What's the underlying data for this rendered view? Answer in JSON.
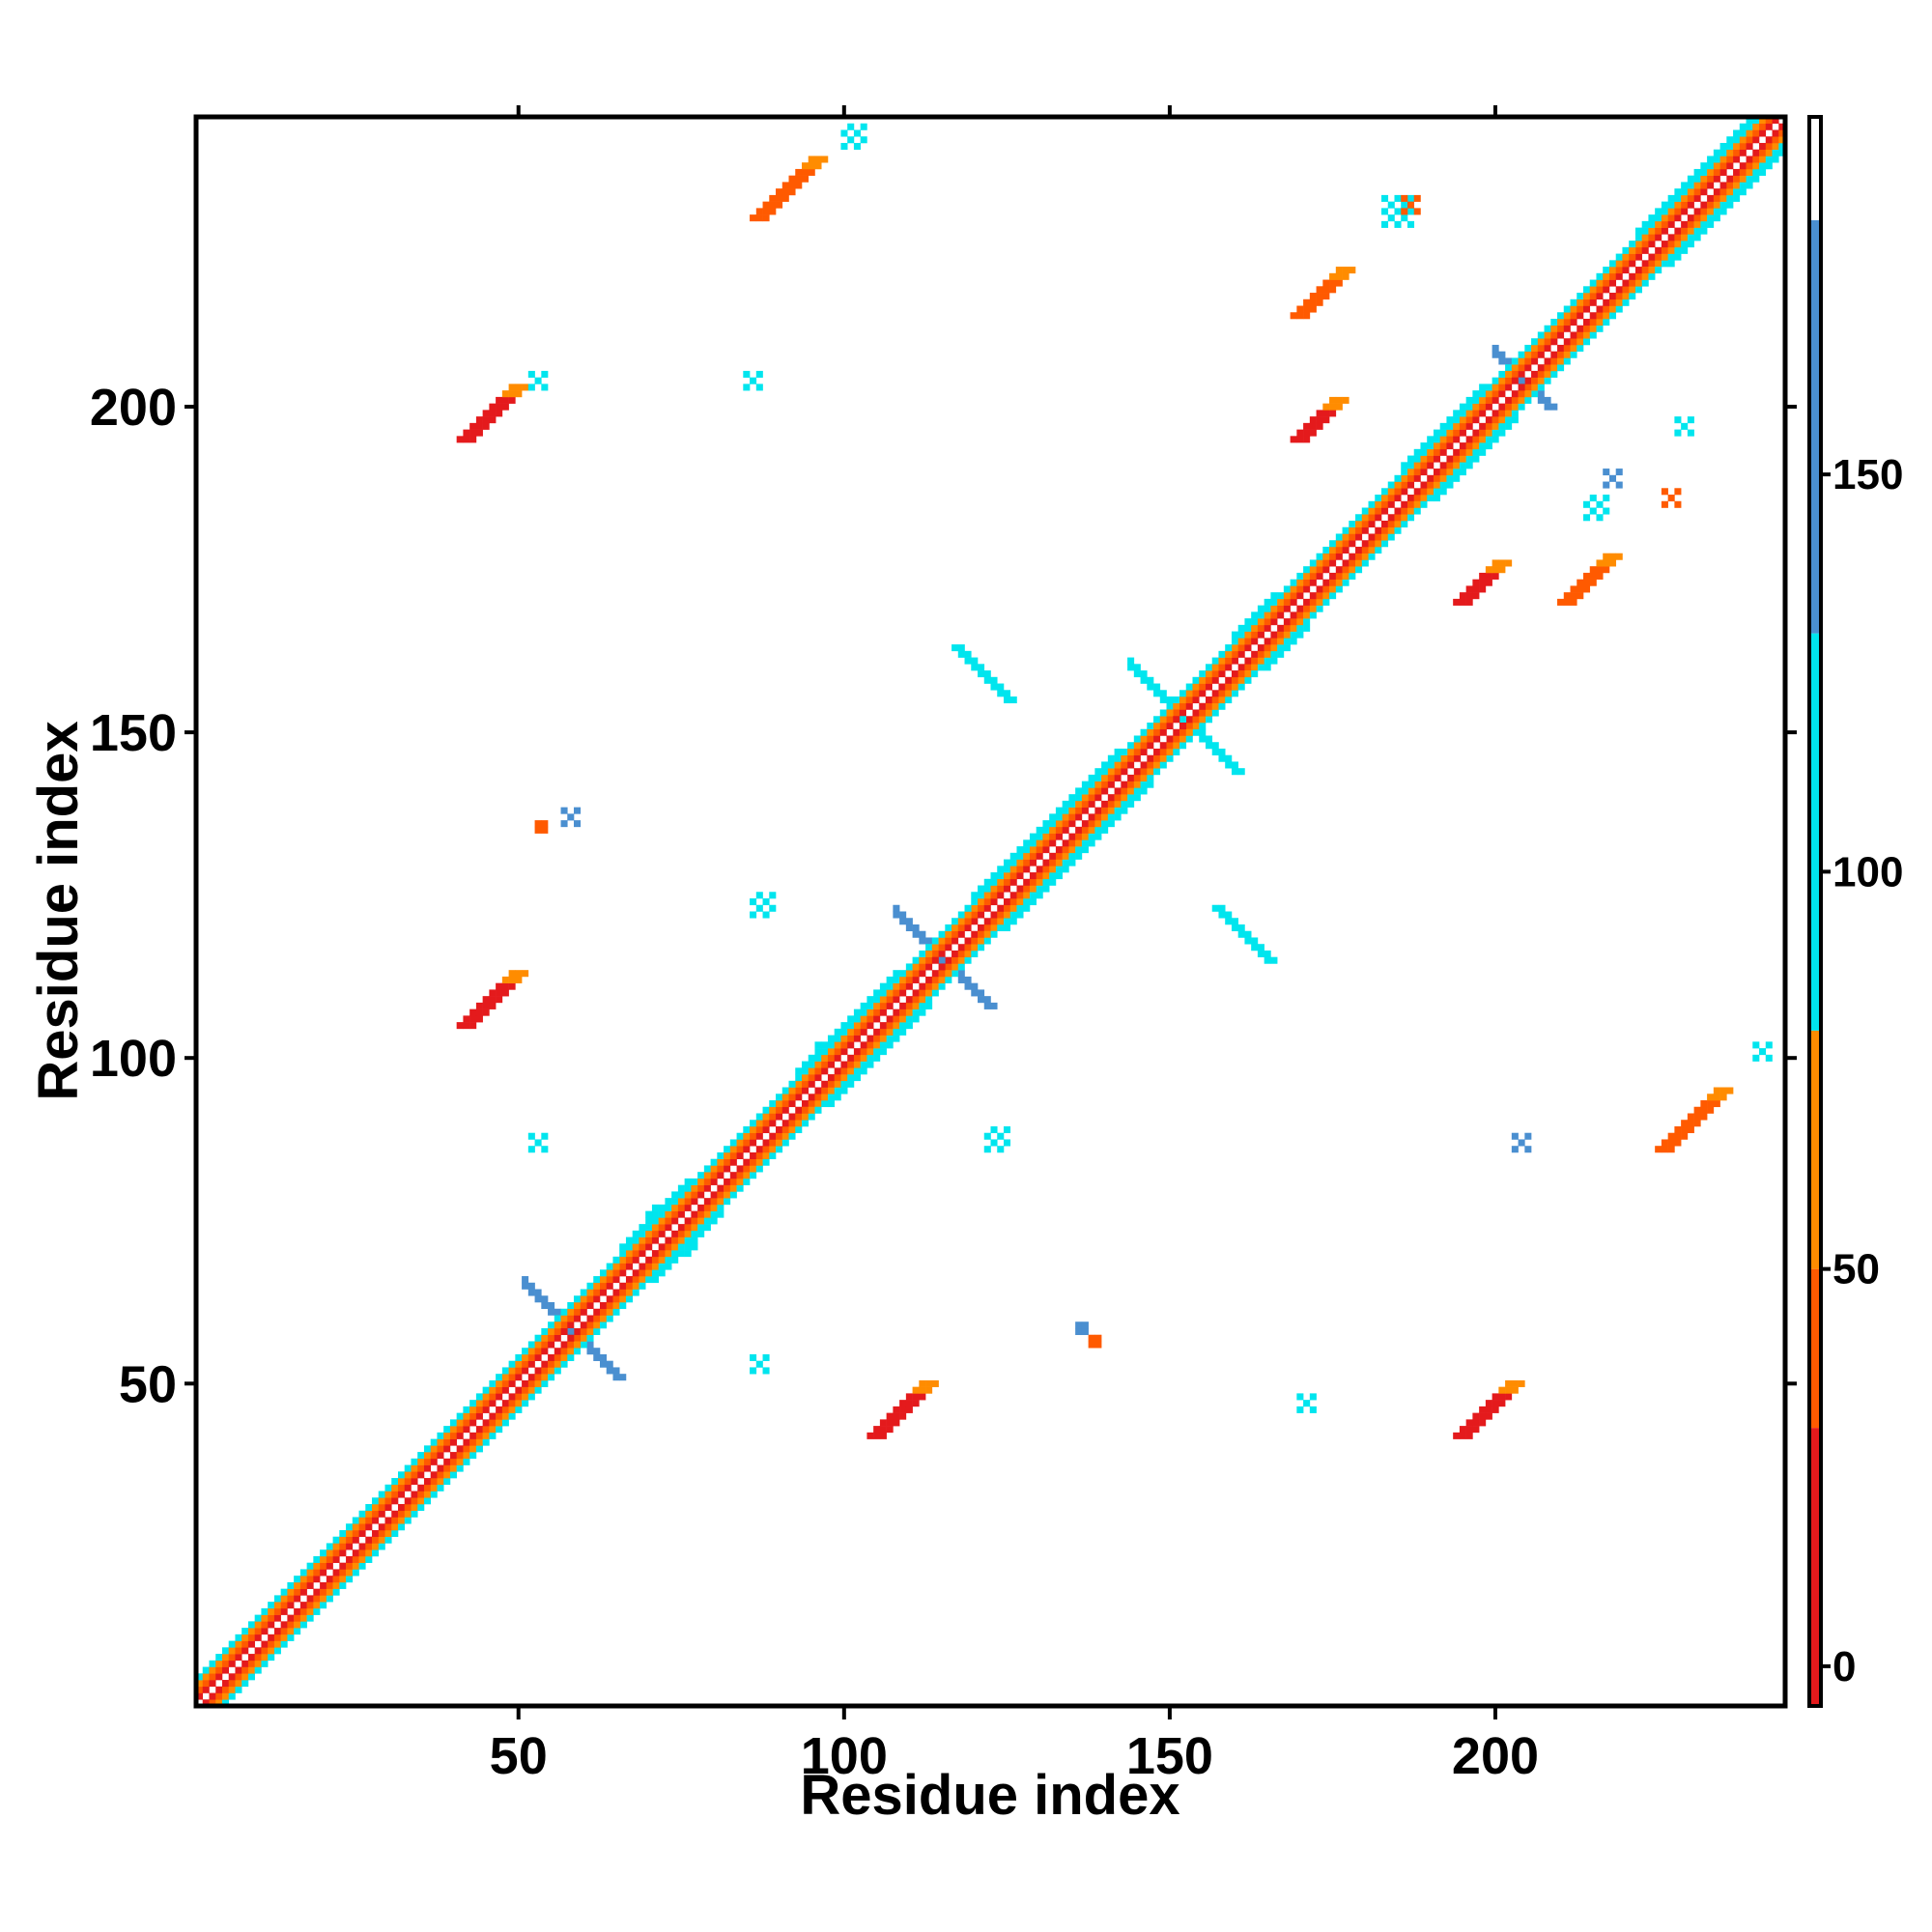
{
  "chart_data": {
    "type": "heatmap",
    "title": "",
    "xlabel": "Residue index",
    "ylabel": "Residue index",
    "xlim": [
      1,
      244
    ],
    "ylim": [
      1,
      244
    ],
    "x_ticks": [
      50,
      100,
      150,
      200
    ],
    "y_ticks": [
      50,
      100,
      150,
      200
    ],
    "grid": false,
    "matrix_symmetric": true,
    "colorbar": {
      "ticks": [
        0,
        50,
        100,
        150
      ],
      "range": [
        -5,
        195
      ],
      "bands": [
        {
          "from": -5,
          "to": 30,
          "color": "#e41a1c"
        },
        {
          "from": 30,
          "to": 50,
          "color": "#ff5a00"
        },
        {
          "from": 50,
          "to": 80,
          "color": "#ff8c00"
        },
        {
          "from": 80,
          "to": 130,
          "color": "#00e5ee"
        },
        {
          "from": 130,
          "to": 182,
          "color": "#4a8fd0"
        },
        {
          "from": 182,
          "to": 195,
          "color": "#ffffff"
        }
      ]
    },
    "diagonal": {
      "from": 1,
      "to": 244,
      "pattern": [
        {
          "offset": 1,
          "value": 15
        },
        {
          "offset": 2,
          "value": 40
        },
        {
          "offset": 3,
          "value": 60
        },
        {
          "offset": 4,
          "value": 100
        }
      ]
    },
    "features": [
      {
        "kind": "helix",
        "from": 93,
        "to": 108,
        "value": 95
      },
      {
        "kind": "helix",
        "from": 120,
        "to": 142,
        "value": 100
      },
      {
        "kind": "helix",
        "from": 186,
        "to": 198,
        "value": 90
      },
      {
        "kind": "helix",
        "from": 66,
        "to": 76,
        "value": 100
      },
      {
        "kind": "helix",
        "from": 222,
        "to": 244,
        "value": 95
      },
      {
        "kind": "helix",
        "from": 160,
        "to": 166,
        "value": 90
      },
      {
        "kind": "antiparallel",
        "center": [
          58,
          58
        ],
        "halfwidth": 7,
        "value": 140
      },
      {
        "kind": "antiparallel",
        "center": [
          115,
          115
        ],
        "halfwidth": 7,
        "value": 150
      },
      {
        "kind": "antiparallel",
        "center": [
          152,
          152
        ],
        "halfwidth": 8,
        "value": 120
      },
      {
        "kind": "antiparallel",
        "center": [
          204,
          204
        ],
        "halfwidth": 4,
        "value": 140
      },
      {
        "kind": "parallel",
        "x": [
          42,
          50
        ],
        "y": [
          195,
          203
        ],
        "value": 20
      },
      {
        "kind": "parallel",
        "x": [
          42,
          50
        ],
        "y": [
          105,
          113
        ],
        "value": 20
      },
      {
        "kind": "parallel",
        "x": [
          105,
          113
        ],
        "y": [
          42,
          50
        ],
        "value": 20
      },
      {
        "kind": "parallel",
        "x": [
          195,
          203
        ],
        "y": [
          42,
          50
        ],
        "value": 20
      },
      {
        "kind": "parallel",
        "x": [
          170,
          176
        ],
        "y": [
          195,
          201
        ],
        "value": 25
      },
      {
        "kind": "parallel",
        "x": [
          195,
          201
        ],
        "y": [
          170,
          176
        ],
        "value": 25
      },
      {
        "kind": "parallel",
        "x": [
          170,
          177
        ],
        "y": [
          214,
          221
        ],
        "value": 35
      },
      {
        "kind": "parallel",
        "x": [
          211,
          218
        ],
        "y": [
          170,
          177
        ],
        "value": 35
      },
      {
        "kind": "parallel",
        "x": [
          87,
          96
        ],
        "y": [
          229,
          238
        ],
        "value": 40
      },
      {
        "kind": "parallel",
        "x": [
          226,
          235
        ],
        "y": [
          86,
          95
        ],
        "value": 40
      },
      {
        "kind": "antidiag",
        "x": [
          117,
          125
        ],
        "y": [
          155,
          163
        ],
        "value": 120
      },
      {
        "kind": "antidiag",
        "x": [
          157,
          165
        ],
        "y": [
          115,
          123
        ],
        "value": 120
      },
      {
        "kind": "cluster",
        "center": [
          100,
          240
        ],
        "size": 4,
        "value": 100
      },
      {
        "kind": "cluster",
        "center": [
          183,
          228
        ],
        "size": 5,
        "value": 100
      },
      {
        "kind": "cluster",
        "center": [
          214,
          183
        ],
        "size": 4,
        "value": 100
      },
      {
        "kind": "cluster",
        "center": [
          217,
          188
        ],
        "size": 3,
        "value": 130
      },
      {
        "kind": "cluster",
        "center": [
          186,
          230
        ],
        "size": 3,
        "value": 40
      },
      {
        "kind": "cluster",
        "center": [
          85,
          203
        ],
        "size": 3,
        "value": 110
      },
      {
        "kind": "cluster",
        "center": [
          52,
          203
        ],
        "size": 3,
        "value": 100
      },
      {
        "kind": "cluster",
        "center": [
          57,
          136
        ],
        "size": 3,
        "value": 140
      },
      {
        "kind": "cluster",
        "center": [
          53,
          135
        ],
        "size": 2,
        "value": 40
      },
      {
        "kind": "cluster",
        "center": [
          52,
          86
        ],
        "size": 3,
        "value": 100
      },
      {
        "kind": "cluster",
        "center": [
          86,
          52
        ],
        "size": 3,
        "value": 100
      },
      {
        "kind": "cluster",
        "center": [
          136,
          58
        ],
        "size": 2,
        "value": 140
      },
      {
        "kind": "cluster",
        "center": [
          138,
          56
        ],
        "size": 2,
        "value": 40
      },
      {
        "kind": "cluster",
        "center": [
          203,
          86
        ],
        "size": 3,
        "value": 130
      },
      {
        "kind": "cluster",
        "center": [
          86,
          122
        ],
        "size": 4,
        "value": 110
      },
      {
        "kind": "cluster",
        "center": [
          122,
          86
        ],
        "size": 4,
        "value": 110
      },
      {
        "kind": "cluster",
        "center": [
          96,
          100
        ],
        "size": 3,
        "value": 110
      },
      {
        "kind": "cluster",
        "center": [
          240,
          100
        ],
        "size": 3,
        "value": 110
      },
      {
        "kind": "cluster",
        "center": [
          170,
          46
        ],
        "size": 3,
        "value": 110
      },
      {
        "kind": "cluster",
        "center": [
          228,
          196
        ],
        "size": 3,
        "value": 110
      },
      {
        "kind": "cluster",
        "center": [
          226,
          185
        ],
        "size": 3,
        "value": 40
      },
      {
        "kind": "cluster",
        "center": [
          74,
          70
        ],
        "size": 4,
        "value": 110
      },
      {
        "kind": "cluster",
        "center": [
          70,
          74
        ],
        "size": 4,
        "value": 110
      }
    ]
  }
}
